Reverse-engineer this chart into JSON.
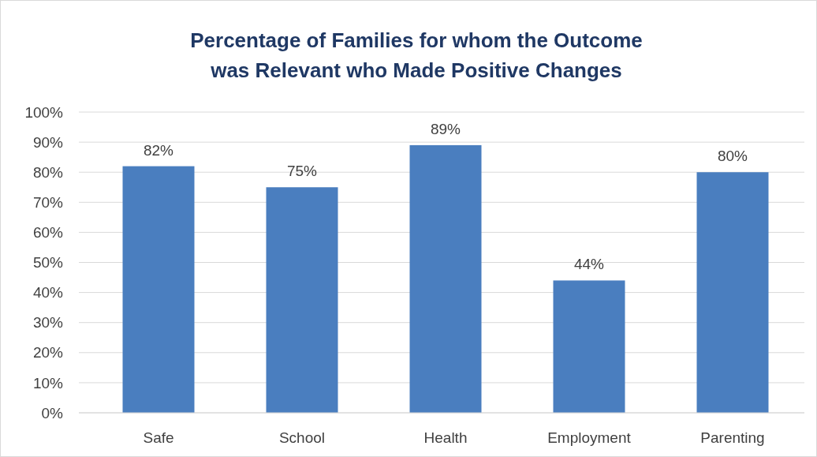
{
  "chart_data": {
    "type": "bar",
    "title": "Percentage of Families for whom the Outcome\nwas Relevant who Made Positive Changes",
    "categories": [
      "Safe",
      "School",
      "Health",
      "Employment",
      "Parenting"
    ],
    "values": [
      82,
      75,
      89,
      44,
      80
    ],
    "value_labels": [
      "82%",
      "75%",
      "89%",
      "44%",
      "80%"
    ],
    "color": "#4a7ebf",
    "ylim": [
      0,
      100
    ],
    "yticks": [
      {
        "value": 0,
        "label": "0%"
      },
      {
        "value": 10,
        "label": "10%"
      },
      {
        "value": 20,
        "label": "20%"
      },
      {
        "value": 30,
        "label": "30%"
      },
      {
        "value": 40,
        "label": "40%"
      },
      {
        "value": 50,
        "label": "50%"
      },
      {
        "value": 60,
        "label": "60%"
      },
      {
        "value": 70,
        "label": "70%"
      },
      {
        "value": 80,
        "label": "80%"
      },
      {
        "value": 90,
        "label": "90%"
      },
      {
        "value": 100,
        "label": "100%"
      }
    ],
    "grid": "y"
  }
}
